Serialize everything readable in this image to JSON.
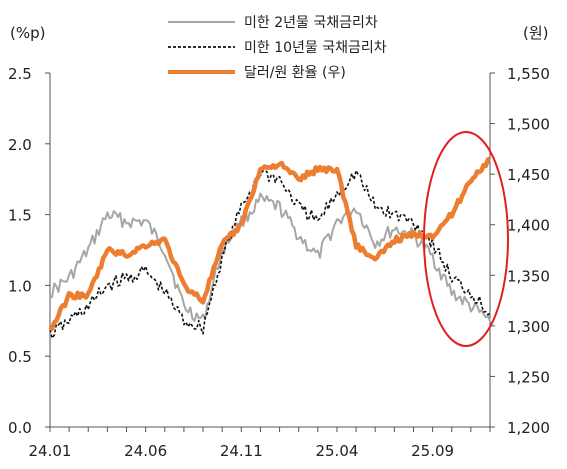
{
  "chart_data": {
    "type": "line",
    "left_unit": "(%p)",
    "right_unit": "(원)",
    "x_ticks": [
      "24.01",
      "24.06",
      "24.11",
      "25.04",
      "25.09"
    ],
    "y_left_ticks": [
      "0.0",
      "0.5",
      "1.0",
      "1.5",
      "2.0",
      "2.5"
    ],
    "y_right_ticks": [
      "1,200",
      "1,250",
      "1,300",
      "1,350",
      "1,400",
      "1,450",
      "1,500",
      "1,550"
    ],
    "y_left_range": [
      0,
      2.5
    ],
    "y_right_range": [
      1200,
      1550
    ],
    "x_range": [
      "2024-01",
      "2025-12"
    ],
    "series": [
      {
        "name": "미한 2년물 국채금리차",
        "axis": "left",
        "color": "#a6a6a6",
        "style": "solid",
        "x": [
          "2024-01",
          "2024-02",
          "2024-03",
          "2024-04",
          "2024-05",
          "2024-06",
          "2024-07",
          "2024-08",
          "2024-09",
          "2024-10",
          "2024-11",
          "2024-12",
          "2025-01",
          "2025-02",
          "2025-03",
          "2025-04",
          "2025-05",
          "2025-06",
          "2025-07",
          "2025-08",
          "2025-09",
          "2025-10",
          "2025-11",
          "2025-12"
        ],
        "values": [
          0.95,
          1.05,
          1.25,
          1.5,
          1.45,
          1.45,
          1.25,
          0.85,
          0.75,
          1.25,
          1.45,
          1.6,
          1.55,
          1.35,
          1.2,
          1.45,
          1.55,
          1.3,
          1.4,
          1.35,
          1.2,
          0.95,
          0.85,
          0.75
        ]
      },
      {
        "name": "미한 10년물 국채금리차",
        "axis": "left",
        "color": "#111111",
        "style": "dashed",
        "x": [
          "2024-01",
          "2024-02",
          "2024-03",
          "2024-04",
          "2024-05",
          "2024-06",
          "2024-07",
          "2024-08",
          "2024-09",
          "2024-10",
          "2024-11",
          "2024-12",
          "2025-01",
          "2025-02",
          "2025-03",
          "2025-04",
          "2025-05",
          "2025-06",
          "2025-07",
          "2025-08",
          "2025-09",
          "2025-10",
          "2025-11",
          "2025-12"
        ],
        "values": [
          0.65,
          0.75,
          0.85,
          1.0,
          1.05,
          1.1,
          0.95,
          0.75,
          0.7,
          1.2,
          1.55,
          1.8,
          1.75,
          1.55,
          1.45,
          1.65,
          1.8,
          1.55,
          1.5,
          1.45,
          1.3,
          1.05,
          0.95,
          0.8
        ]
      },
      {
        "name": "달러/원 환율 (우)",
        "axis": "right",
        "color": "#ed7d31",
        "style": "thick",
        "x": [
          "2024-01",
          "2024-02",
          "2024-03",
          "2024-04",
          "2024-05",
          "2024-06",
          "2024-07",
          "2024-08",
          "2024-09",
          "2024-10",
          "2024-11",
          "2024-12",
          "2025-01",
          "2025-02",
          "2025-03",
          "2025-04",
          "2025-05",
          "2025-06",
          "2025-07",
          "2025-08",
          "2025-09",
          "2025-10",
          "2025-11",
          "2025-12"
        ],
        "values": [
          1295,
          1330,
          1330,
          1375,
          1370,
          1380,
          1385,
          1340,
          1325,
          1380,
          1400,
          1455,
          1460,
          1445,
          1455,
          1455,
          1380,
          1365,
          1385,
          1390,
          1390,
          1410,
          1445,
          1465
        ]
      }
    ],
    "annotation": "red-ellipse-highlight",
    "grid": false,
    "legend_placement": "top-center"
  },
  "colors": {
    "axis": "#555555",
    "highlight": "#e02020"
  }
}
